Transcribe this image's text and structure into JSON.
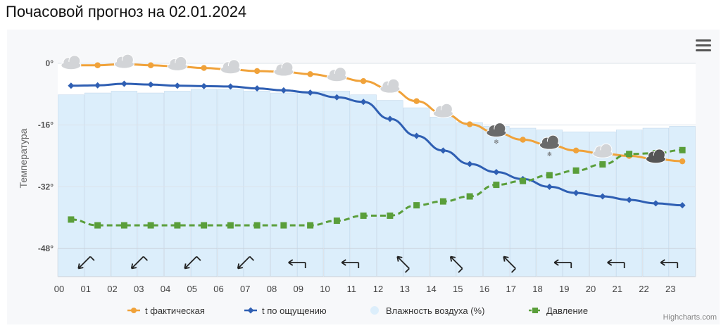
{
  "page": {
    "title": "Почасовой прогноз на 02.01.2024"
  },
  "credits": "Highcharts.com",
  "chart_data": {
    "type": "line",
    "categories": [
      "00",
      "01",
      "02",
      "03",
      "04",
      "05",
      "06",
      "07",
      "08",
      "09",
      "10",
      "11",
      "12",
      "13",
      "14",
      "15",
      "16",
      "17",
      "18",
      "19",
      "20",
      "21",
      "22",
      "23"
    ],
    "yaxis": {
      "label": "Температура",
      "min": -48,
      "max": 0,
      "ticks": [
        0,
        -16,
        -32,
        -48
      ],
      "tick_labels": [
        "0°",
        "-16°",
        "-32°",
        "-48°"
      ]
    },
    "grid": true,
    "legend_position": "bottom-center",
    "series": [
      {
        "name": "t фактическая",
        "type": "line",
        "color": "#f0a23a",
        "marker": "circle",
        "values": [
          -0.5,
          -0.5,
          -0.2,
          -0.5,
          -0.8,
          -1.2,
          -1.6,
          -2.0,
          -2.2,
          -2.8,
          -3.6,
          -4.6,
          -6.6,
          -9.8,
          -13.0,
          -15.8,
          -18.0,
          -19.8,
          -21.2,
          -22.6,
          -23.4,
          -24.0,
          -24.8,
          -25.4
        ]
      },
      {
        "name": "t по ощущению",
        "type": "line",
        "color": "#2f5fb3",
        "marker": "diamond",
        "values": [
          -5.8,
          -5.7,
          -5.3,
          -5.5,
          -5.8,
          -5.9,
          -6.0,
          -6.5,
          -7.0,
          -7.6,
          -8.8,
          -10.0,
          -14.4,
          -18.8,
          -22.6,
          -26.1,
          -28.2,
          -30.0,
          -32.0,
          -33.6,
          -34.5,
          -35.4,
          -36.3,
          -36.8
        ]
      },
      {
        "name": "Влажность воздуха (%)",
        "type": "column",
        "color": "#dceefb",
        "values": [
          83,
          84,
          85,
          84,
          85,
          86,
          86,
          85,
          84,
          85,
          85,
          83,
          80,
          76,
          71,
          68,
          66,
          65,
          64,
          63,
          63,
          64,
          65,
          66
        ]
      },
      {
        "name": "Давление",
        "type": "line",
        "dashed": true,
        "color": "#5a9e3a",
        "marker": "square",
        "values": [
          -40.5,
          -42.0,
          -42.0,
          -42.0,
          -42.0,
          -42.0,
          -42.0,
          -42.0,
          -42.0,
          -42.0,
          -40.8,
          -39.5,
          -39.5,
          -36.8,
          -35.8,
          -34.5,
          -31.5,
          -30.5,
          -29.0,
          -27.8,
          -26.2,
          -23.5,
          -23.3,
          -22.5
        ]
      }
    ],
    "weather_icons": [
      {
        "hour": 0,
        "value": -0.5,
        "icon": "cloud-icon"
      },
      {
        "hour": 2,
        "value": -0.2,
        "icon": "cloud-icon"
      },
      {
        "hour": 4,
        "value": -0.8,
        "icon": "cloud-icon"
      },
      {
        "hour": 6,
        "value": -1.6,
        "icon": "cloud-icon"
      },
      {
        "hour": 8,
        "value": -2.2,
        "icon": "cloud-icon"
      },
      {
        "hour": 10,
        "value": -3.6,
        "icon": "cloud-icon"
      },
      {
        "hour": 12,
        "value": -6.6,
        "icon": "cloud-icon"
      },
      {
        "hour": 14,
        "value": -13.0,
        "icon": "cloud-icon"
      },
      {
        "hour": 16,
        "value": -18.0,
        "icon": "snow-cloud-icon"
      },
      {
        "hour": 18,
        "value": -21.2,
        "icon": "snow-cloud-icon"
      },
      {
        "hour": 20,
        "value": -23.4,
        "icon": "cloud-icon"
      },
      {
        "hour": 22,
        "value": -24.8,
        "icon": "dark-cloud-icon"
      }
    ],
    "wind_barbs": [
      {
        "hour": 0,
        "direction": 225,
        "icon": "wind-barb-icon"
      },
      {
        "hour": 2,
        "direction": 225,
        "icon": "wind-barb-icon"
      },
      {
        "hour": 4,
        "direction": 225,
        "icon": "wind-barb-icon"
      },
      {
        "hour": 6,
        "direction": 225,
        "icon": "wind-barb-icon"
      },
      {
        "hour": 8,
        "direction": 270,
        "icon": "wind-barb-icon"
      },
      {
        "hour": 10,
        "direction": 270,
        "icon": "wind-barb-icon"
      },
      {
        "hour": 12,
        "direction": 315,
        "icon": "wind-barb-icon"
      },
      {
        "hour": 14,
        "direction": 315,
        "icon": "wind-barb-icon"
      },
      {
        "hour": 16,
        "direction": 315,
        "icon": "wind-barb-icon"
      },
      {
        "hour": 18,
        "direction": 270,
        "icon": "wind-barb-icon"
      },
      {
        "hour": 20,
        "direction": 270,
        "icon": "wind-barb-icon"
      },
      {
        "hour": 22,
        "direction": 270,
        "icon": "wind-barb-icon"
      }
    ]
  }
}
